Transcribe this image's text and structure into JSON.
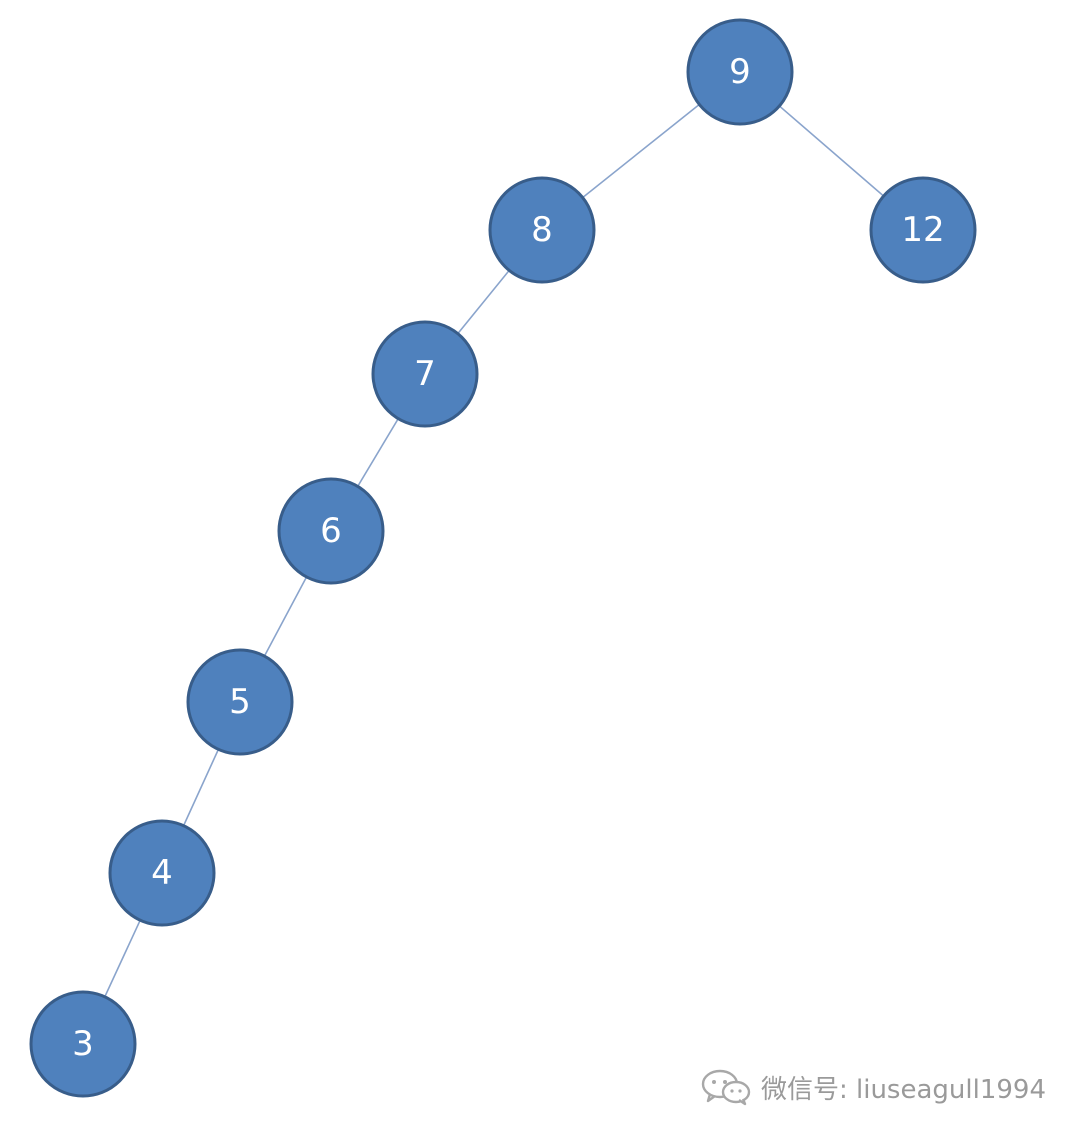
{
  "diagram": {
    "type": "binary-search-tree",
    "nodes": [
      {
        "id": "n9",
        "label": "9"
      },
      {
        "id": "n8",
        "label": "8"
      },
      {
        "id": "n12",
        "label": "12"
      },
      {
        "id": "n7",
        "label": "7"
      },
      {
        "id": "n6",
        "label": "6"
      },
      {
        "id": "n5",
        "label": "5"
      },
      {
        "id": "n4",
        "label": "4"
      },
      {
        "id": "n3",
        "label": "3"
      }
    ],
    "edges": [
      {
        "from": "n9",
        "to": "n8"
      },
      {
        "from": "n9",
        "to": "n12"
      },
      {
        "from": "n8",
        "to": "n7"
      },
      {
        "from": "n7",
        "to": "n6"
      },
      {
        "from": "n6",
        "to": "n5"
      },
      {
        "from": "n5",
        "to": "n4"
      },
      {
        "from": "n4",
        "to": "n3"
      }
    ],
    "colors": {
      "node_fill": "#4f81bd",
      "node_stroke": "#385d8a",
      "edge": "#8aa4cc",
      "label": "#ffffff"
    }
  },
  "watermark": {
    "text": "微信号: liuseagull1994",
    "icon": "wechat-icon"
  }
}
